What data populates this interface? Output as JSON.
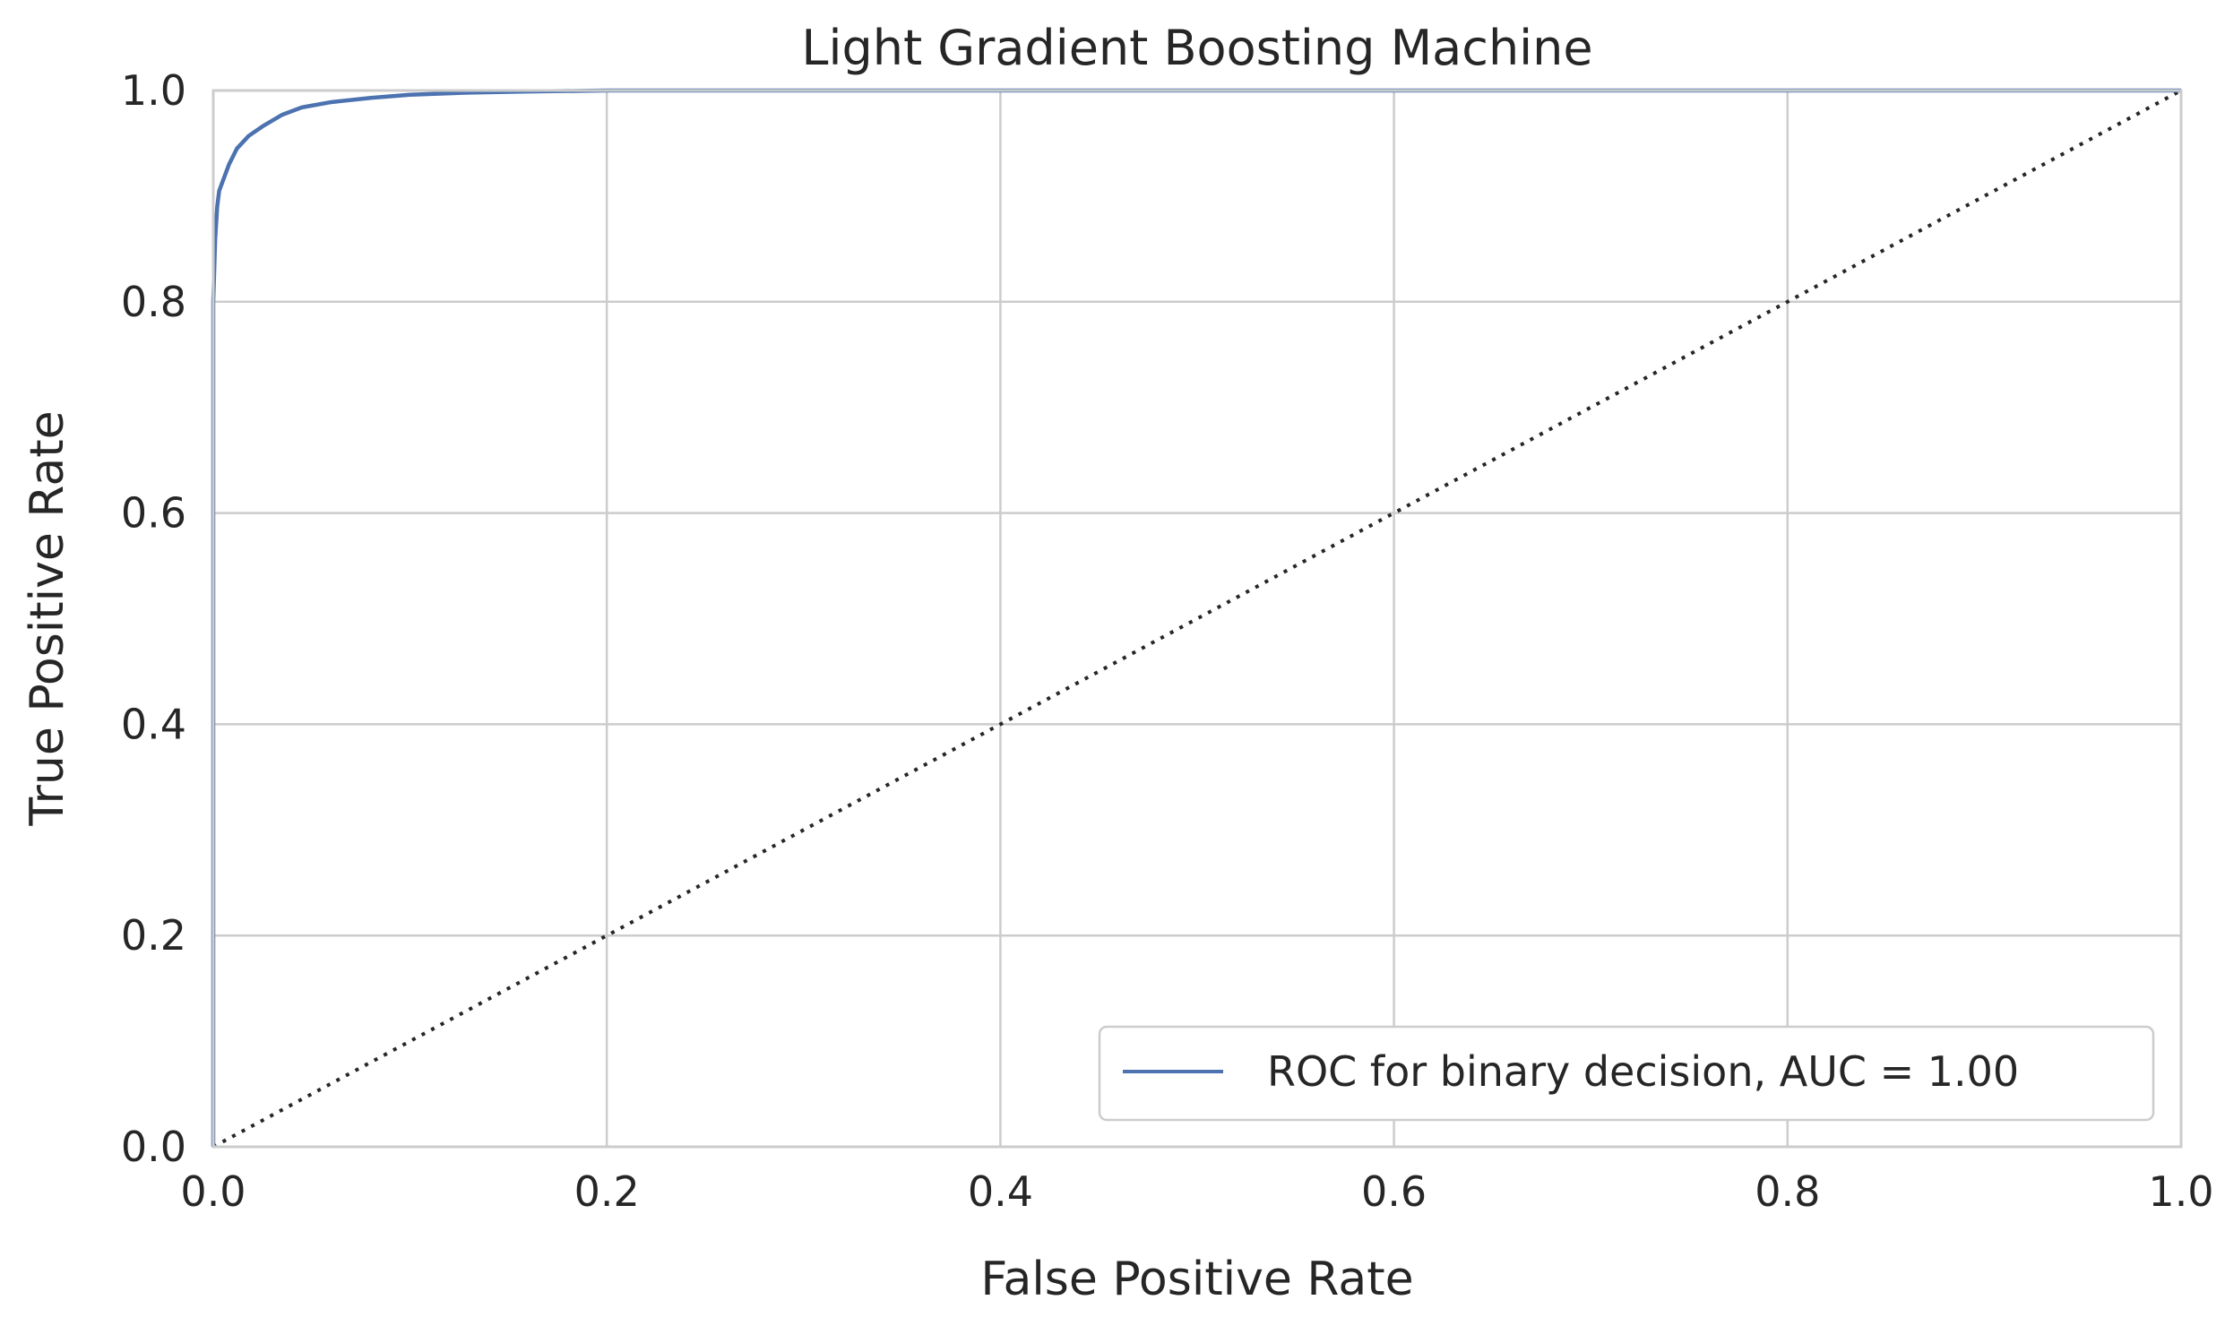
{
  "chart_data": {
    "type": "line",
    "title": "Light Gradient Boosting Machine",
    "xlabel": "False Positive Rate",
    "ylabel": "True Positive Rate",
    "xlim": [
      0.0,
      1.0
    ],
    "ylim": [
      0.0,
      1.0
    ],
    "x_ticks": [
      "0.0",
      "0.2",
      "0.4",
      "0.6",
      "0.8",
      "1.0"
    ],
    "y_ticks": [
      "0.0",
      "0.2",
      "0.4",
      "0.6",
      "0.8",
      "1.0"
    ],
    "grid": true,
    "legend": {
      "placement": "lower-right"
    },
    "series": [
      {
        "name": "ROC for binary decision, AUC = 1.00",
        "color": "#4c72b0",
        "style": "solid",
        "x": [
          0.0,
          0.0,
          0.001,
          0.002,
          0.003,
          0.005,
          0.008,
          0.012,
          0.018,
          0.025,
          0.035,
          0.045,
          0.06,
          0.08,
          0.1,
          0.13,
          0.16,
          0.2,
          1.0
        ],
        "y": [
          0.0,
          0.8,
          0.86,
          0.89,
          0.905,
          0.915,
          0.93,
          0.945,
          0.957,
          0.966,
          0.977,
          0.984,
          0.989,
          0.993,
          0.996,
          0.998,
          0.999,
          1.0,
          1.0
        ]
      }
    ],
    "reference_line": {
      "x": [
        0.0,
        1.0
      ],
      "y": [
        0.0,
        1.0
      ],
      "color": "#262626",
      "style": "dotted"
    }
  }
}
